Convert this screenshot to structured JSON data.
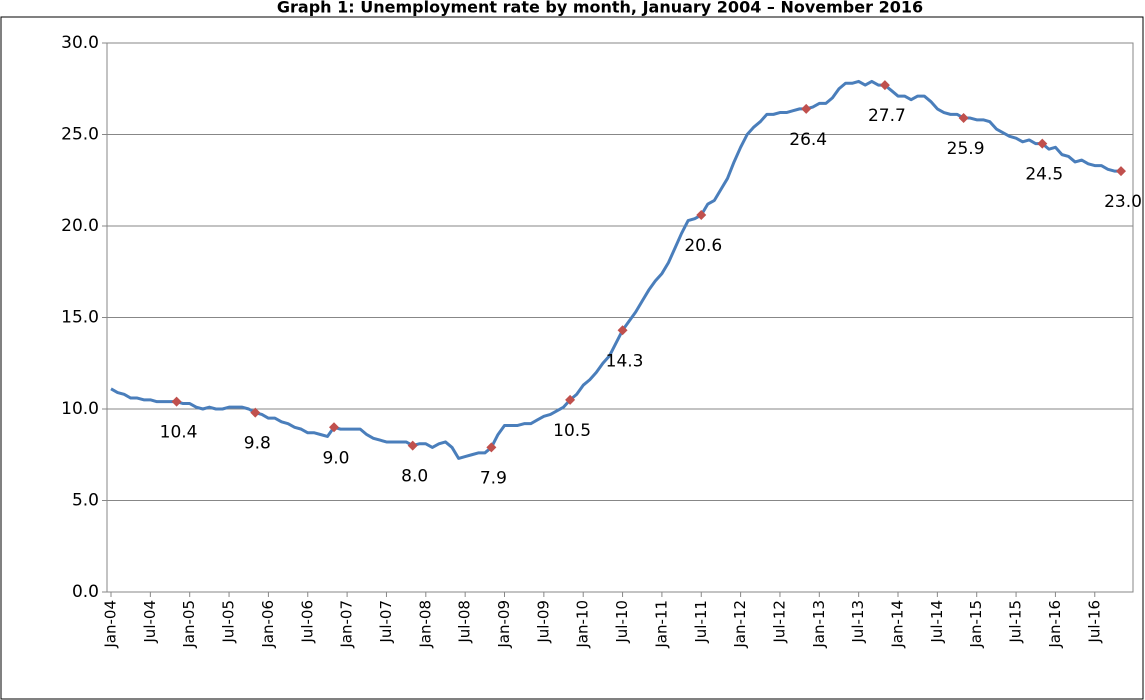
{
  "chart_data": {
    "type": "line",
    "title": "Graph 1: Unemployment rate by month, January 2004 – November 2016",
    "categories": [
      "Jan-04",
      null,
      null,
      null,
      null,
      null,
      "Jul-04",
      null,
      null,
      null,
      null,
      null,
      "Jan-05",
      null,
      null,
      null,
      null,
      null,
      "Jul-05",
      null,
      null,
      null,
      null,
      null,
      "Jan-06",
      null,
      null,
      null,
      null,
      null,
      "Jul-06",
      null,
      null,
      null,
      null,
      null,
      "Jan-07",
      null,
      null,
      null,
      null,
      null,
      "Jul-07",
      null,
      null,
      null,
      null,
      null,
      "Jan-08",
      null,
      null,
      null,
      null,
      null,
      "Jul-08",
      null,
      null,
      null,
      null,
      null,
      "Jan-09",
      null,
      null,
      null,
      null,
      null,
      "Jul-09",
      null,
      null,
      null,
      null,
      null,
      "Jan-10",
      null,
      null,
      null,
      null,
      null,
      "Jul-10",
      null,
      null,
      null,
      null,
      null,
      "Jan-11",
      null,
      null,
      null,
      null,
      null,
      "Jul-11",
      null,
      null,
      null,
      null,
      null,
      "Jan-12",
      null,
      null,
      null,
      null,
      null,
      "Jul-12",
      null,
      null,
      null,
      null,
      null,
      "Jan-13",
      null,
      null,
      null,
      null,
      null,
      "Jul-13",
      null,
      null,
      null,
      null,
      null,
      "Jan-14",
      null,
      null,
      null,
      null,
      null,
      "Jul-14",
      null,
      null,
      null,
      null,
      null,
      "Jan-15",
      null,
      null,
      null,
      null,
      null,
      "Jul-15",
      null,
      null,
      null,
      null,
      null,
      "Jan-16",
      null,
      null,
      null,
      null,
      null,
      "Jul-16",
      null,
      null,
      null,
      null
    ],
    "series": [
      {
        "color": "#4a7ebb",
        "marker_color": "#c0504d",
        "values": [
          11.1,
          10.9,
          10.8,
          10.6,
          10.6,
          10.5,
          10.5,
          10.4,
          10.4,
          10.4,
          10.4,
          10.3,
          10.3,
          10.1,
          10.0,
          10.1,
          10.0,
          10.0,
          10.1,
          10.1,
          10.1,
          10.0,
          9.8,
          9.7,
          9.5,
          9.5,
          9.3,
          9.2,
          9.0,
          8.9,
          8.7,
          8.7,
          8.6,
          8.5,
          9.0,
          8.9,
          8.9,
          8.9,
          8.9,
          8.6,
          8.4,
          8.3,
          8.2,
          8.2,
          8.2,
          8.2,
          8.0,
          8.1,
          8.1,
          7.9,
          8.1,
          8.2,
          7.9,
          7.3,
          7.4,
          7.5,
          7.6,
          7.6,
          7.9,
          8.6,
          9.1,
          9.1,
          9.1,
          9.2,
          9.2,
          9.4,
          9.6,
          9.7,
          9.9,
          10.1,
          10.5,
          10.8,
          11.3,
          11.6,
          12.0,
          12.5,
          12.9,
          13.6,
          14.3,
          14.8,
          15.3,
          15.9,
          16.5,
          17.0,
          17.4,
          18.0,
          18.8,
          19.6,
          20.3,
          20.4,
          20.6,
          21.2,
          21.4,
          22.0,
          22.6,
          23.5,
          24.3,
          25.0,
          25.4,
          25.7,
          26.1,
          26.1,
          26.2,
          26.2,
          26.3,
          26.4,
          26.4,
          26.5,
          26.7,
          26.7,
          27.0,
          27.5,
          27.8,
          27.8,
          27.9,
          27.7,
          27.9,
          27.7,
          27.7,
          27.4,
          27.1,
          27.1,
          26.9,
          27.1,
          27.1,
          26.8,
          26.4,
          26.2,
          26.1,
          26.1,
          25.9,
          25.9,
          25.8,
          25.8,
          25.7,
          25.3,
          25.1,
          24.9,
          24.8,
          24.6,
          24.7,
          24.5,
          24.5,
          24.2,
          24.3,
          23.9,
          23.8,
          23.5,
          23.6,
          23.4,
          23.3,
          23.3,
          23.1,
          23.0,
          23.0
        ],
        "value_labels": [
          null,
          null,
          null,
          null,
          null,
          null,
          null,
          null,
          null,
          null,
          "10.4",
          null,
          null,
          null,
          null,
          null,
          null,
          null,
          null,
          null,
          null,
          null,
          "9.8",
          null,
          null,
          null,
          null,
          null,
          null,
          null,
          null,
          null,
          null,
          null,
          "9.0",
          null,
          null,
          null,
          null,
          null,
          null,
          null,
          null,
          null,
          null,
          null,
          "8.0",
          null,
          null,
          null,
          null,
          null,
          null,
          null,
          null,
          null,
          null,
          null,
          "7.9",
          null,
          null,
          null,
          null,
          null,
          null,
          null,
          null,
          null,
          null,
          null,
          "10.5",
          null,
          null,
          null,
          null,
          null,
          null,
          null,
          "14.3",
          null,
          null,
          null,
          null,
          null,
          null,
          null,
          null,
          null,
          null,
          null,
          "20.6",
          null,
          null,
          null,
          null,
          null,
          null,
          null,
          null,
          null,
          null,
          null,
          null,
          null,
          null,
          null,
          "26.4",
          null,
          null,
          null,
          null,
          null,
          null,
          null,
          null,
          null,
          null,
          null,
          "27.7",
          null,
          null,
          null,
          null,
          null,
          null,
          null,
          null,
          null,
          null,
          null,
          "25.9",
          null,
          null,
          null,
          null,
          null,
          null,
          null,
          null,
          null,
          null,
          null,
          "24.5",
          null,
          null,
          null,
          null,
          null,
          null,
          null,
          null,
          null,
          null,
          null,
          "23.0"
        ]
      }
    ],
    "ylim": [
      0,
      30
    ],
    "yticks": [
      {
        "value": 0,
        "label": "0.0"
      },
      {
        "value": 5,
        "label": "5.0"
      },
      {
        "value": 10,
        "label": "10.0"
      },
      {
        "value": 15,
        "label": "15.0"
      },
      {
        "value": 20,
        "label": "20.0"
      },
      {
        "value": 25,
        "label": "25.0"
      },
      {
        "value": 30,
        "label": "30.0"
      }
    ],
    "grid": true
  }
}
